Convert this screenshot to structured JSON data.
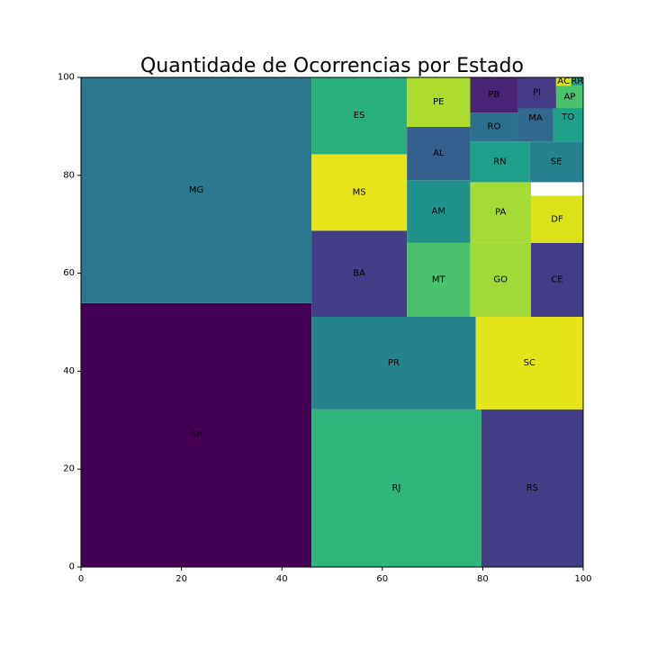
{
  "chart_data": {
    "type": "treemap",
    "title": "Quantidade de Ocorrencias por Estado",
    "xlim": [
      0,
      100
    ],
    "ylim": [
      0,
      100
    ],
    "xticks": [
      "0",
      "20",
      "40",
      "60",
      "80",
      "100"
    ],
    "yticks": [
      "0",
      "20",
      "40",
      "60",
      "80",
      "100"
    ],
    "grid": false,
    "rects": [
      {
        "label": "SP",
        "x": 0,
        "y": 0,
        "w": 45.9,
        "h": 53.9,
        "color": "#440154"
      },
      {
        "label": "MG",
        "x": 0,
        "y": 53.9,
        "w": 45.9,
        "h": 46.1,
        "color": "#2a788e"
      },
      {
        "label": "RJ",
        "x": 45.9,
        "y": 0,
        "w": 33.8,
        "h": 32.2,
        "color": "#2fb47c"
      },
      {
        "label": "RS",
        "x": 79.7,
        "y": 0,
        "w": 20.3,
        "h": 32.2,
        "color": "#433e85"
      },
      {
        "label": "PR",
        "x": 45.9,
        "y": 32.2,
        "w": 32.7,
        "h": 18.9,
        "color": "#25838e"
      },
      {
        "label": "SC",
        "x": 78.6,
        "y": 32.2,
        "w": 21.4,
        "h": 18.9,
        "color": "#e5e419"
      },
      {
        "label": "BA",
        "x": 45.9,
        "y": 51.1,
        "w": 19.0,
        "h": 17.6,
        "color": "#433e85"
      },
      {
        "label": "MS",
        "x": 45.9,
        "y": 68.7,
        "w": 19.0,
        "h": 15.6,
        "color": "#e8e419"
      },
      {
        "label": "ES",
        "x": 45.9,
        "y": 84.3,
        "w": 19.0,
        "h": 15.7,
        "color": "#2ab07f"
      },
      {
        "label": "MT",
        "x": 64.9,
        "y": 51.1,
        "w": 12.6,
        "h": 15.1,
        "color": "#4ac16d"
      },
      {
        "label": "AM",
        "x": 64.9,
        "y": 66.2,
        "w": 12.6,
        "h": 12.8,
        "color": "#21918c"
      },
      {
        "label": "AL",
        "x": 64.9,
        "y": 79.0,
        "w": 12.6,
        "h": 10.9,
        "color": "#355f8d"
      },
      {
        "label": "PE",
        "x": 64.9,
        "y": 89.9,
        "w": 12.6,
        "h": 10.1,
        "color": "#addc30"
      },
      {
        "label": "GO",
        "x": 77.5,
        "y": 51.1,
        "w": 12.1,
        "h": 15.1,
        "color": "#a0da39"
      },
      {
        "label": "CE",
        "x": 89.6,
        "y": 51.1,
        "w": 10.4,
        "h": 15.1,
        "color": "#433e85"
      },
      {
        "label": "PA",
        "x": 77.5,
        "y": 66.2,
        "w": 12.1,
        "h": 12.4,
        "color": "#a5db36"
      },
      {
        "label": "DF",
        "x": 89.6,
        "y": 66.2,
        "w": 10.4,
        "h": 9.6,
        "color": "#dae319"
      },
      {
        "label": "RN",
        "x": 77.5,
        "y": 78.6,
        "w": 11.8,
        "h": 8.3,
        "color": "#1f9e89"
      },
      {
        "label": "SE",
        "x": 89.3,
        "y": 78.6,
        "w": 10.7,
        "h": 8.3,
        "color": "#26828e"
      },
      {
        "label": "RO",
        "x": 77.5,
        "y": 86.9,
        "w": 9.5,
        "h": 5.9,
        "color": "#2d708e"
      },
      {
        "label": "MA",
        "x": 87.0,
        "y": 86.9,
        "w": 7.0,
        "h": 9.4,
        "color": "#31688e"
      },
      {
        "label": "TO",
        "x": 94.0,
        "y": 86.9,
        "w": 6.0,
        "h": 9.8,
        "color": "#1fa088"
      },
      {
        "label": "PB",
        "x": 77.5,
        "y": 92.8,
        "w": 9.5,
        "h": 7.2,
        "color": "#482475"
      },
      {
        "label": "PI",
        "x": 87.0,
        "y": 93.7,
        "w": 7.6,
        "h": 6.3,
        "color": "#443a83"
      },
      {
        "label": "AP",
        "x": 94.6,
        "y": 93.7,
        "w": 5.4,
        "h": 4.6,
        "color": "#4ac16d"
      },
      {
        "label": "AC",
        "x": 94.6,
        "y": 98.3,
        "w": 3.0,
        "h": 1.7,
        "color": "#d8e219"
      },
      {
        "label": "RR",
        "x": 97.6,
        "y": 98.3,
        "w": 2.4,
        "h": 1.7,
        "color": "#1fa187"
      }
    ]
  }
}
